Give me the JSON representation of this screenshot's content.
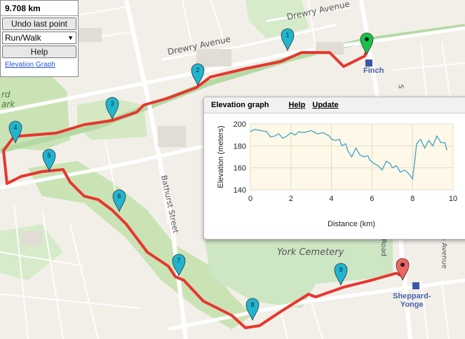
{
  "panel": {
    "distance": "9.708 km",
    "undo_label": "Undo last point",
    "mode_value": "Run/Walk",
    "help_label": "Help",
    "elevation_link": "Elevation Graph"
  },
  "popup": {
    "title": "Elevation graph",
    "help_link": "Help",
    "update_link": "Update"
  },
  "map": {
    "labels": {
      "drewry_avenue_top": "Drewry Avenue",
      "drewry_avenue_mid": "Drewry Avenue",
      "bathurst_street": "Bathurst Street",
      "york_cemetery": "York Cemetery",
      "road_fragment": "Road",
      "doris_avenue": "Doris Avenue",
      "park_fragment": "rd\nark",
      "side_street_fragment": "S"
    },
    "stations": {
      "finch": "Finch",
      "sheppard_yonge": "Sheppard-\nYonge"
    },
    "markers": [
      "1",
      "2",
      "3",
      "4",
      "5",
      "6",
      "7",
      "8",
      "9"
    ],
    "colors": {
      "route": "#e8362e",
      "marker_blue": "#1fb5d1",
      "marker_start": "#19c24a",
      "marker_end": "#f0645e",
      "rail": "#b5d9a5"
    }
  },
  "chart_data": {
    "type": "line",
    "xlabel": "Distance (km)",
    "ylabel": "Elevation (meters)",
    "xlim": [
      0,
      10
    ],
    "ylim": [
      140,
      200
    ],
    "xticks": [
      "0",
      "2",
      "4",
      "6",
      "8",
      "10"
    ],
    "yticks": [
      "140",
      "160",
      "180",
      "200"
    ],
    "x": [
      0,
      0.2,
      0.5,
      0.8,
      1.0,
      1.2,
      1.4,
      1.6,
      1.8,
      2.0,
      2.2,
      2.4,
      2.6,
      2.8,
      3.0,
      3.3,
      3.6,
      3.9,
      4.0,
      4.2,
      4.4,
      4.5,
      4.7,
      4.8,
      5.0,
      5.2,
      5.4,
      5.6,
      5.8,
      5.9,
      6.1,
      6.3,
      6.5,
      6.7,
      6.9,
      7.0,
      7.2,
      7.4,
      7.6,
      7.8,
      8.0,
      8.1,
      8.2,
      8.4,
      8.6,
      8.8,
      9.0,
      9.2,
      9.4,
      9.6,
      9.7
    ],
    "y": [
      193,
      195,
      194,
      193,
      188,
      189,
      191,
      187,
      189,
      192,
      190,
      193,
      192,
      193,
      194,
      191,
      192,
      189,
      186,
      185,
      186,
      180,
      182,
      176,
      170,
      178,
      172,
      170,
      171,
      167,
      164,
      162,
      158,
      166,
      164,
      160,
      162,
      156,
      158,
      155,
      150,
      165,
      182,
      186,
      178,
      185,
      180,
      189,
      183,
      183,
      176
    ]
  }
}
